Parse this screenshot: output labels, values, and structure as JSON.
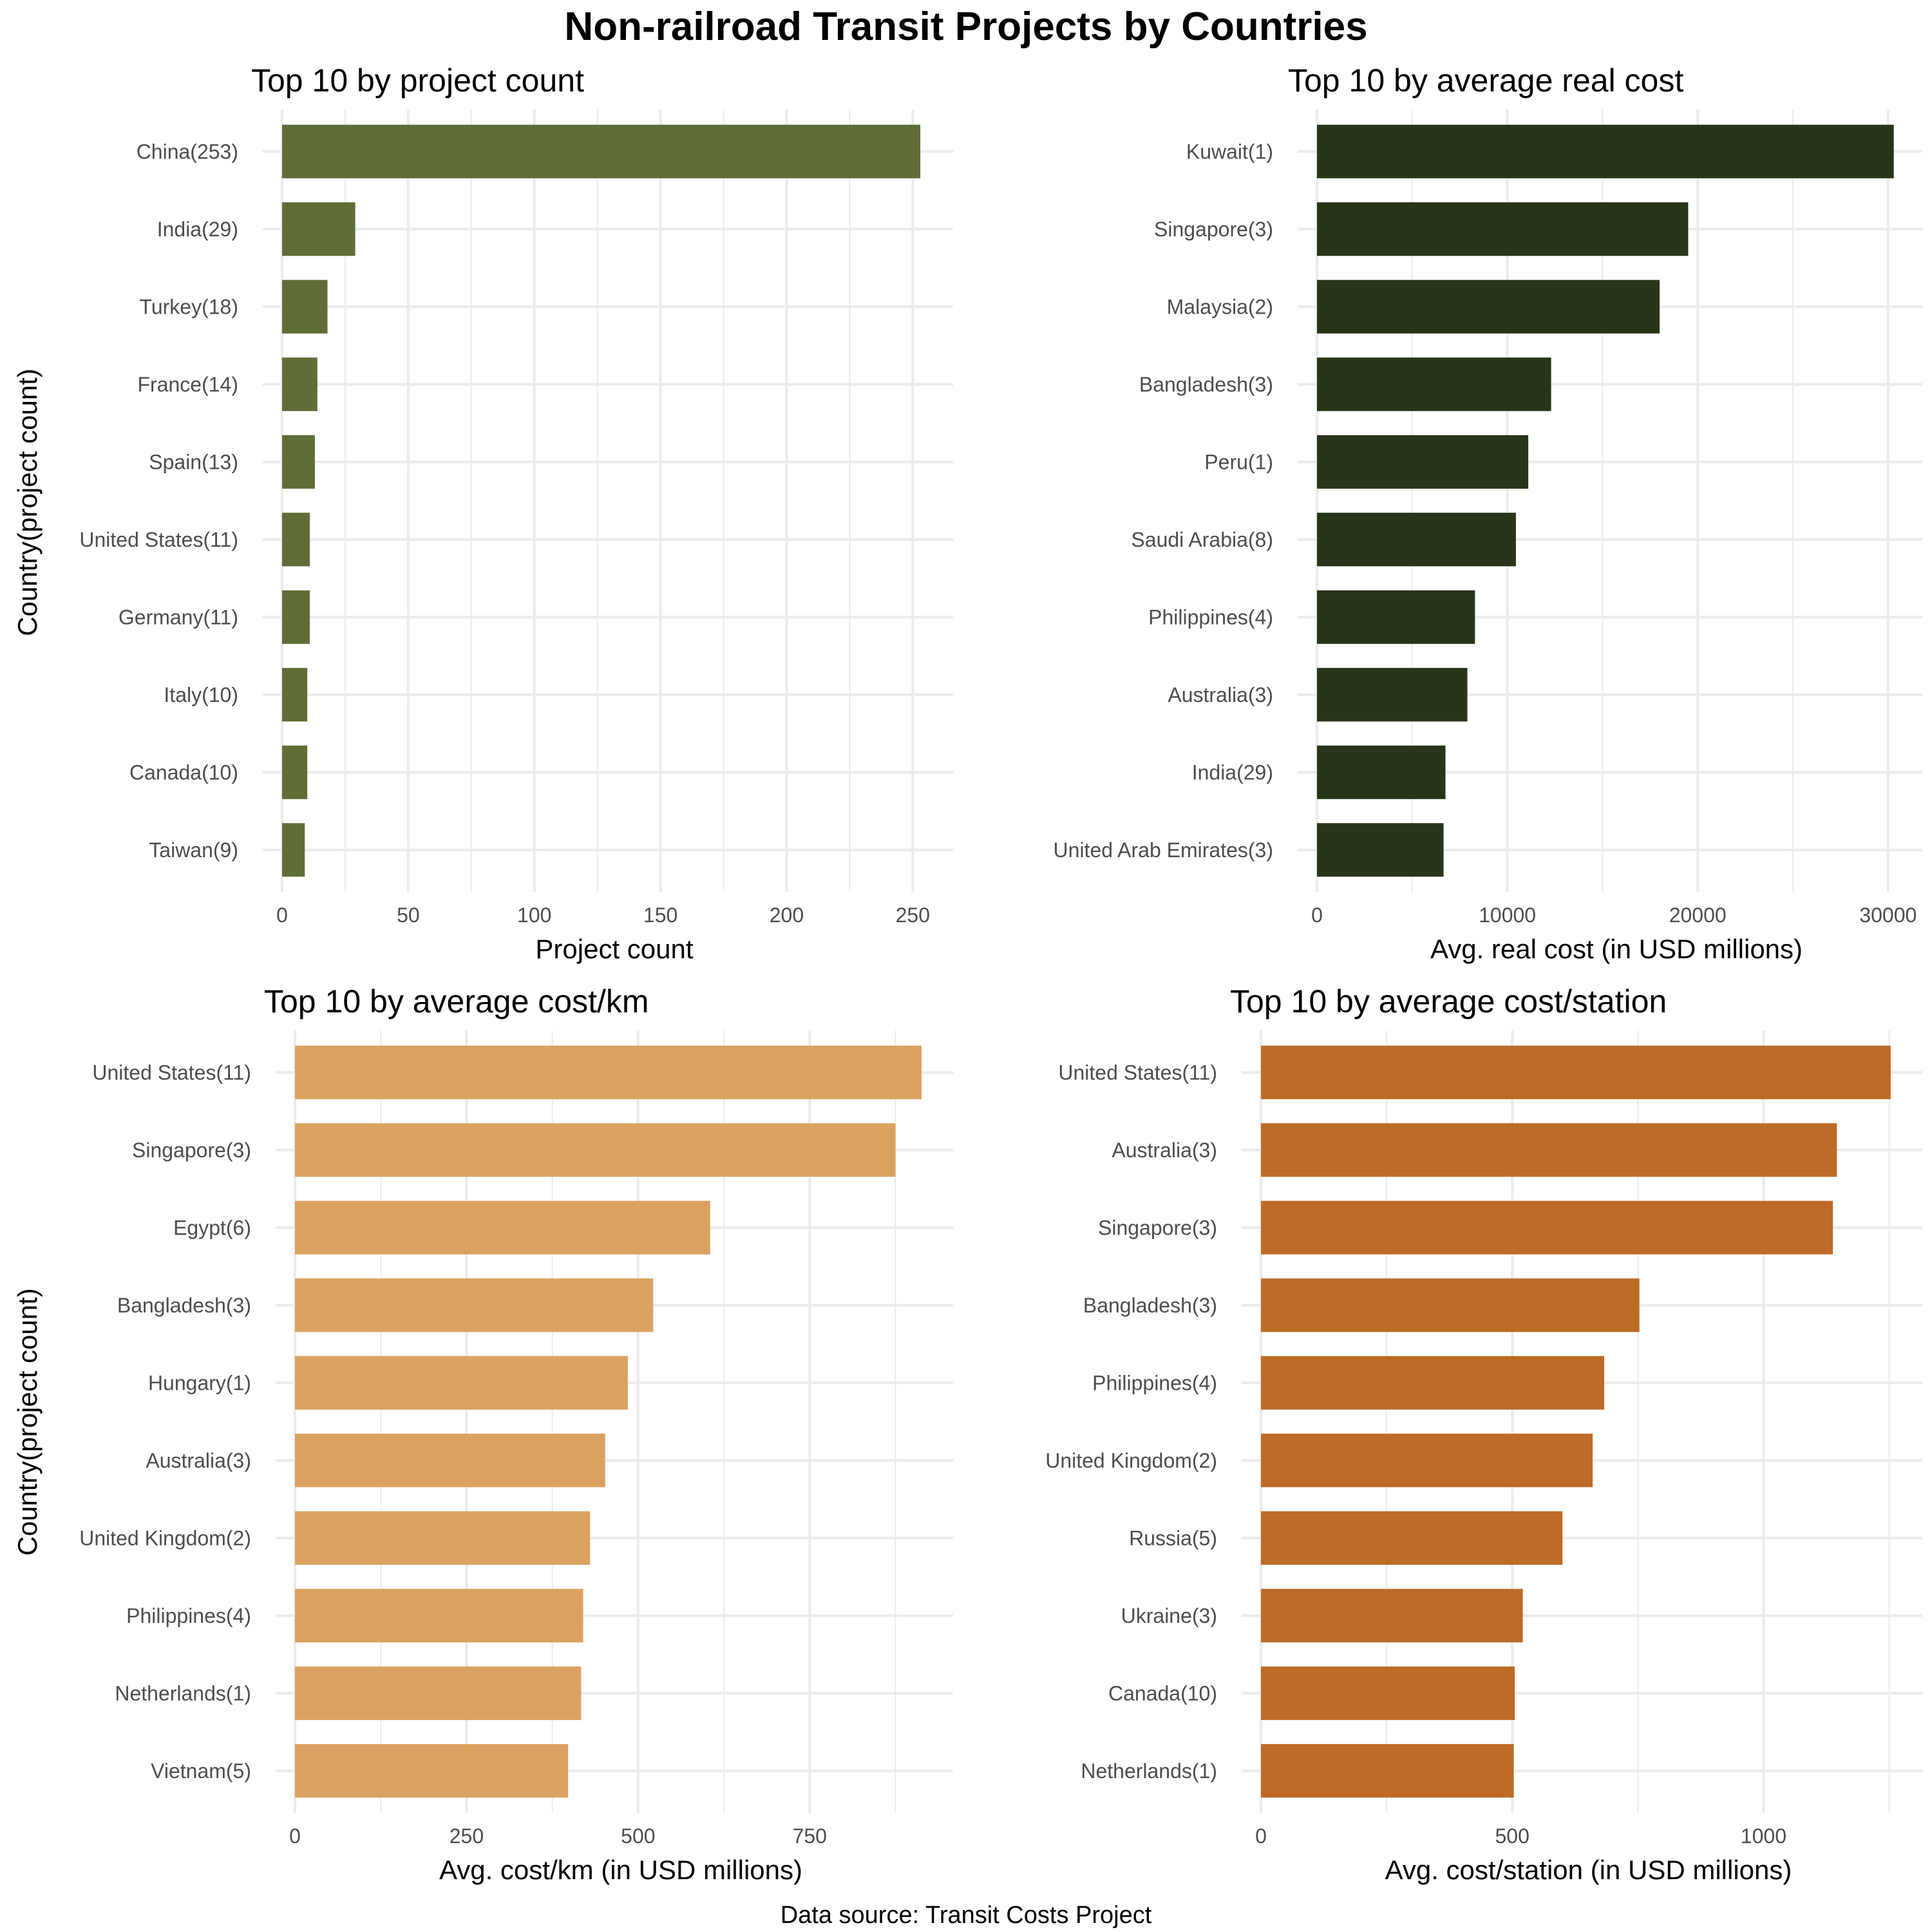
{
  "title": "Non-railroad Transit Projects by Countries",
  "caption": "Data source: Transit Costs Project",
  "chart_data": [
    {
      "type": "bar",
      "orientation": "horizontal",
      "title": "Top 10 by project count",
      "xlabel": "Project count",
      "ylabel": "Country(project count)",
      "color": "#5f6d37",
      "categories": [
        "China(253)",
        "India(29)",
        "Turkey(18)",
        "France(14)",
        "Spain(13)",
        "United States(11)",
        "Germany(11)",
        "Italy(10)",
        "Canada(10)",
        "Taiwan(9)"
      ],
      "values": [
        253,
        29,
        18,
        14,
        13,
        11,
        11,
        10,
        10,
        9
      ],
      "xlim": [
        0,
        266
      ],
      "xticks": [
        0,
        50,
        100,
        150,
        200,
        250
      ],
      "grid": true
    },
    {
      "type": "bar",
      "orientation": "horizontal",
      "title": "Top 10 by average real cost",
      "xlabel": "Avg. real cost (in USD millions)",
      "ylabel": "",
      "color": "#283518",
      "categories": [
        "Kuwait(1)",
        "Singapore(3)",
        "Malaysia(2)",
        "Bangladesh(3)",
        "Peru(1)",
        "Saudi Arabia(8)",
        "Philippines(4)",
        "Australia(3)",
        "India(29)",
        "United Arab Emirates(3)"
      ],
      "values": [
        30300,
        19500,
        18000,
        12300,
        11100,
        10450,
        8300,
        7900,
        6750,
        6650
      ],
      "xlim": [
        0,
        31800
      ],
      "xticks": [
        0,
        10000,
        20000,
        30000
      ],
      "grid": true
    },
    {
      "type": "bar",
      "orientation": "horizontal",
      "title": "Top 10 by average cost/km",
      "xlabel": "Avg. cost/km (in USD millions)",
      "ylabel": "Country(project count)",
      "color": "#dba160",
      "categories": [
        "United States(11)",
        "Singapore(3)",
        "Egypt(6)",
        "Bangladesh(3)",
        "Hungary(1)",
        "Australia(3)",
        "United Kingdom(2)",
        "Philippines(4)",
        "Netherlands(1)",
        "Vietnam(5)"
      ],
      "values": [
        913,
        875,
        605,
        522,
        485,
        452,
        430,
        420,
        417,
        398
      ],
      "xlim": [
        0,
        959
      ],
      "xticks": [
        0,
        250,
        500,
        750
      ],
      "grid": true
    },
    {
      "type": "bar",
      "orientation": "horizontal",
      "title": "Top 10 by average cost/station",
      "xlabel": "Avg. cost/station (in USD millions)",
      "ylabel": "",
      "color": "#bd6b27",
      "categories": [
        "United States(11)",
        "Australia(3)",
        "Singapore(3)",
        "Bangladesh(3)",
        "Philippines(4)",
        "United Kingdom(2)",
        "Russia(5)",
        "Ukraine(3)",
        "Canada(10)",
        "Netherlands(1)"
      ],
      "values": [
        1253,
        1146,
        1138,
        753,
        683,
        660,
        600,
        521,
        505,
        503
      ],
      "xlim": [
        0,
        1316
      ],
      "xticks": [
        0,
        500,
        1000
      ],
      "grid": true
    }
  ]
}
